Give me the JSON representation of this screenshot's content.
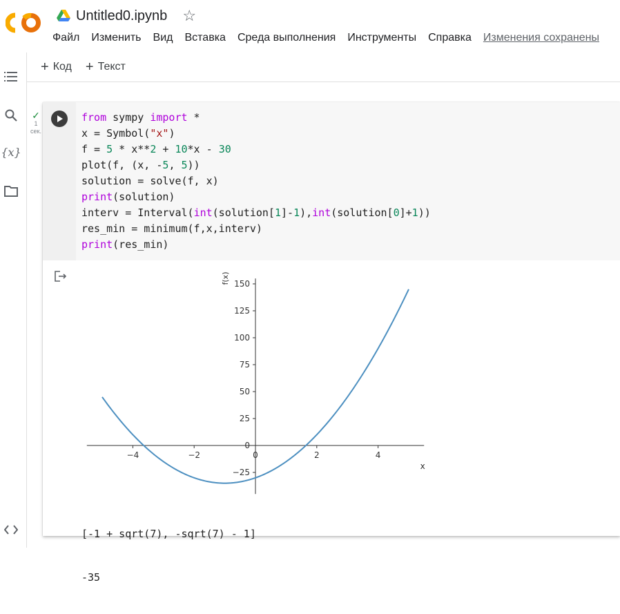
{
  "header": {
    "logo_text": "CO",
    "doc_title": "Untitled0.ipynb",
    "menu": [
      "Файл",
      "Изменить",
      "Вид",
      "Вставка",
      "Среда выполнения",
      "Инструменты",
      "Справка"
    ],
    "save_status": "Изменения сохранены"
  },
  "toolbar": {
    "add_code": "Код",
    "add_text": "Текст"
  },
  "rail": {
    "icons": [
      "table-of-contents-icon",
      "search-icon",
      "variables-icon",
      "files-icon",
      "code-snippets-icon"
    ],
    "variables_label": "{x}"
  },
  "cell": {
    "exec_count": "1",
    "exec_unit": "сек.",
    "code": [
      "from sympy import *",
      "x = Symbol(\"x\")",
      "f = 5 * x**2 + 10*x - 30",
      "plot(f, (x, -5, 5))",
      "solution = solve(f, x)",
      "print(solution)",
      "interv = Interval(int(solution[1]-1),int(solution[0]+1))",
      "res_min = minimum(f,x,interv)",
      "print(res_min)"
    ],
    "output_lines": [
      "[-1 + sqrt(7), -sqrt(7) - 1]",
      "-35"
    ]
  },
  "chart_data": {
    "type": "line",
    "function": "5*x**2 + 10*x - 30",
    "xlim": [
      -5,
      5
    ],
    "ylim": [
      -35,
      150
    ],
    "xticks": [
      -4,
      -2,
      0,
      2,
      4
    ],
    "xtick_labels": [
      "−4",
      "−2",
      "0",
      "2",
      "4"
    ],
    "yticks": [
      -25,
      0,
      25,
      50,
      75,
      100,
      125,
      150
    ],
    "ytick_labels": [
      "−25",
      "0",
      "25",
      "50",
      "75",
      "100",
      "125",
      "150"
    ],
    "xlabel": "x",
    "ylabel": "f(x)",
    "grid": false,
    "line_color": "#4c8fc0"
  }
}
